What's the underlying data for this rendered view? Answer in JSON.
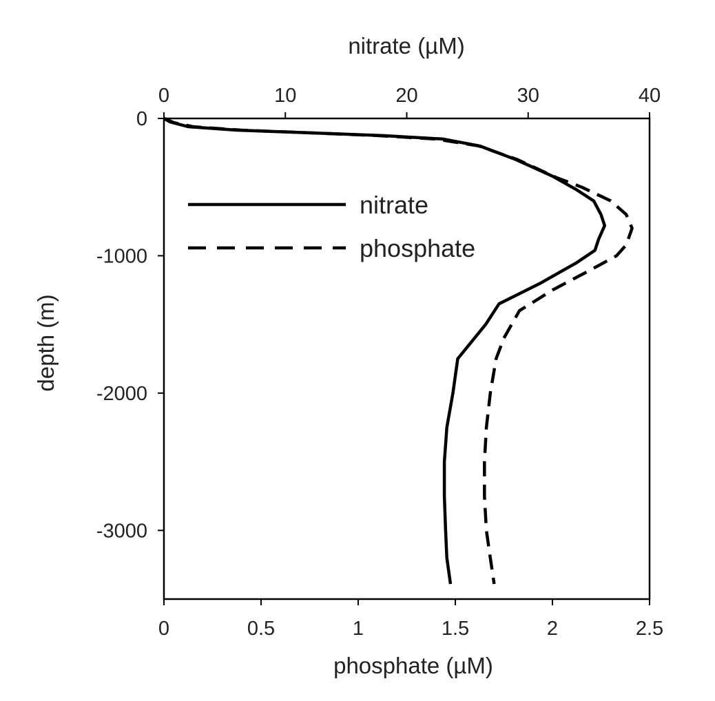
{
  "chart_data": {
    "type": "line",
    "title": "",
    "x_top_label": "nitrate (µM)",
    "x_bottom_label": "phosphate (µM)",
    "ylabel": "depth (m)",
    "top_xlim": [
      0,
      40
    ],
    "bottom_xlim": [
      0,
      2.5
    ],
    "ylim": [
      -3500,
      0
    ],
    "top_ticks": [
      "0",
      "10",
      "20",
      "30",
      "40"
    ],
    "bottom_ticks": [
      "0",
      "0.5",
      "1",
      "1.5",
      "2",
      "2.5"
    ],
    "y_ticks": [
      "0",
      "-1000",
      "-2000",
      "-3000"
    ],
    "grid": false,
    "legend": {
      "placement": "upper-left"
    },
    "series": [
      {
        "name": "nitrate",
        "axis": "top",
        "style": "solid",
        "color": "#000000",
        "points": [
          [
            0,
            0
          ],
          [
            0.5,
            -25
          ],
          [
            2,
            -60
          ],
          [
            6,
            -85
          ],
          [
            12,
            -105
          ],
          [
            18,
            -125
          ],
          [
            23,
            -150
          ],
          [
            26,
            -200
          ],
          [
            29,
            -300
          ],
          [
            32,
            -420
          ],
          [
            34,
            -520
          ],
          [
            35.4,
            -600
          ],
          [
            36,
            -700
          ],
          [
            36.3,
            -780
          ],
          [
            35.8,
            -880
          ],
          [
            35.5,
            -960
          ],
          [
            34,
            -1050
          ],
          [
            31,
            -1200
          ],
          [
            27.6,
            -1350
          ],
          [
            26.5,
            -1500
          ],
          [
            24.2,
            -1750
          ],
          [
            23.8,
            -2000
          ],
          [
            23.3,
            -2250
          ],
          [
            23.1,
            -2500
          ],
          [
            23.1,
            -2750
          ],
          [
            23.2,
            -3000
          ],
          [
            23.3,
            -3200
          ],
          [
            23.6,
            -3390
          ]
        ]
      },
      {
        "name": "phosphate",
        "axis": "bottom",
        "style": "dashed",
        "color": "#000000",
        "points": [
          [
            0,
            0
          ],
          [
            0.05,
            -30
          ],
          [
            0.15,
            -60
          ],
          [
            0.4,
            -85
          ],
          [
            0.75,
            -105
          ],
          [
            1.1,
            -125
          ],
          [
            1.4,
            -150
          ],
          [
            1.62,
            -200
          ],
          [
            1.82,
            -300
          ],
          [
            2.02,
            -430
          ],
          [
            2.15,
            -500
          ],
          [
            2.3,
            -600
          ],
          [
            2.38,
            -700
          ],
          [
            2.41,
            -800
          ],
          [
            2.38,
            -920
          ],
          [
            2.33,
            -1000
          ],
          [
            2.2,
            -1100
          ],
          [
            2.0,
            -1250
          ],
          [
            1.83,
            -1400
          ],
          [
            1.75,
            -1600
          ],
          [
            1.71,
            -1750
          ],
          [
            1.68,
            -2000
          ],
          [
            1.66,
            -2250
          ],
          [
            1.65,
            -2500
          ],
          [
            1.65,
            -2750
          ],
          [
            1.66,
            -3000
          ],
          [
            1.68,
            -3200
          ],
          [
            1.7,
            -3390
          ]
        ]
      }
    ]
  }
}
